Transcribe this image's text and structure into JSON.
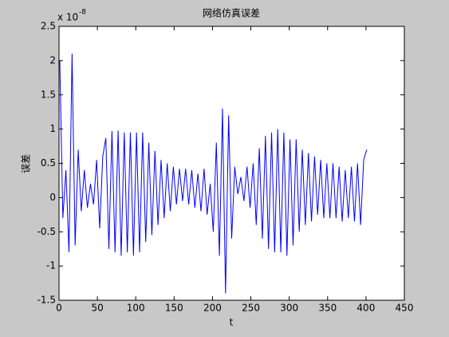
{
  "chart_data": {
    "type": "line",
    "title": "网络仿真误差",
    "xlabel": "t",
    "ylabel": "误差",
    "y_multiplier": "x 10",
    "y_exponent": "-8",
    "x": [
      1,
      5,
      9,
      13,
      17,
      21,
      25,
      29,
      33,
      37,
      41,
      45,
      49,
      53,
      57,
      61,
      65,
      69,
      73,
      77,
      81,
      85,
      89,
      93,
      97,
      101,
      105,
      109,
      113,
      117,
      121,
      125,
      129,
      133,
      137,
      141,
      145,
      149,
      153,
      157,
      161,
      165,
      169,
      173,
      177,
      181,
      185,
      189,
      193,
      197,
      201,
      205,
      209,
      213,
      217,
      221,
      225,
      229,
      233,
      237,
      241,
      245,
      249,
      253,
      257,
      261,
      265,
      269,
      273,
      277,
      281,
      285,
      289,
      293,
      297,
      301,
      305,
      309,
      313,
      317,
      321,
      325,
      329,
      333,
      337,
      341,
      345,
      349,
      353,
      357,
      361,
      365,
      369,
      373,
      377,
      381,
      385,
      389,
      393,
      397,
      401
    ],
    "series": [
      {
        "name": "误差",
        "color": "#0000ff",
        "values": [
          2.0,
          -0.3,
          0.4,
          -0.8,
          2.1,
          -0.7,
          0.7,
          -0.2,
          0.4,
          -0.15,
          0.2,
          -0.1,
          0.55,
          -0.45,
          0.6,
          0.87,
          -0.75,
          0.97,
          -0.8,
          0.98,
          -0.85,
          0.95,
          -0.8,
          0.95,
          -0.85,
          0.95,
          -0.8,
          0.95,
          -0.65,
          0.8,
          -0.55,
          0.68,
          -0.4,
          0.55,
          -0.3,
          0.5,
          -0.2,
          0.45,
          -0.1,
          0.42,
          -0.05,
          0.42,
          -0.1,
          0.4,
          -0.15,
          0.35,
          -0.2,
          0.42,
          -0.25,
          0.2,
          -0.5,
          0.8,
          -0.85,
          1.3,
          -1.4,
          1.2,
          -0.6,
          0.45,
          0.05,
          0.3,
          -0.05,
          0.45,
          -0.15,
          0.5,
          -0.4,
          0.72,
          -0.6,
          0.9,
          -0.75,
          0.95,
          -0.8,
          1.0,
          -0.8,
          0.95,
          -0.85,
          0.85,
          -0.7,
          0.85,
          -0.5,
          0.7,
          -0.4,
          0.65,
          -0.35,
          0.6,
          -0.25,
          0.55,
          -0.3,
          0.5,
          -0.3,
          0.5,
          -0.3,
          0.45,
          -0.35,
          0.4,
          -0.3,
          0.45,
          -0.35,
          0.5,
          -0.4,
          0.55,
          0.7
        ]
      }
    ],
    "xlim": [
      0,
      450
    ],
    "xticks": [
      0,
      50,
      100,
      150,
      200,
      250,
      300,
      350,
      400,
      450
    ],
    "ylim": [
      -1.5,
      2.5
    ],
    "yticks": [
      -1.5,
      -1,
      -0.5,
      0,
      0.5,
      1,
      1.5,
      2,
      2.5
    ],
    "grid": false
  }
}
